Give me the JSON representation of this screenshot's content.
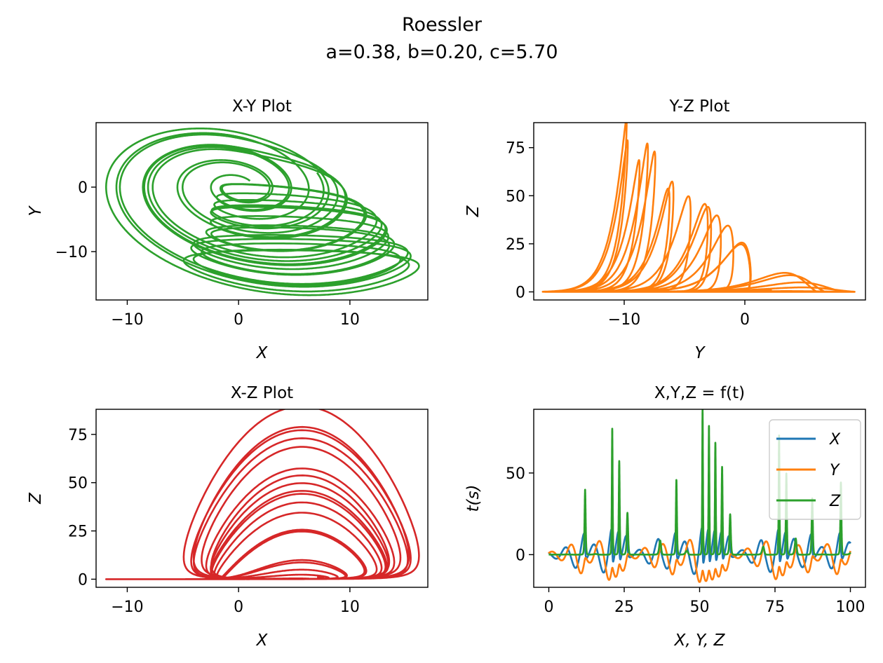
{
  "figure": {
    "title": "Roessler",
    "subtitle": "a=0.38, b=0.20, c=5.70"
  },
  "chart_data": [
    {
      "type": "line",
      "title": "X-Y Plot",
      "xlabel": "X",
      "ylabel": "Y",
      "xlim": [
        -12.8,
        17.0
      ],
      "ylim": [
        -17.5,
        10.0
      ],
      "xticks": [
        -10,
        0,
        10
      ],
      "yticks": [
        0,
        -10
      ],
      "xtick_labels": [
        "−10",
        "0",
        "10"
      ],
      "ytick_labels": [
        "0",
        "−10"
      ],
      "grid": false,
      "color": "#2ca02c",
      "series": [
        {
          "x": "X(t)",
          "y": "Y(t)"
        }
      ]
    },
    {
      "type": "line",
      "title": "Y-Z Plot",
      "xlabel": "Y",
      "ylabel": "Z",
      "xlim": [
        -17.5,
        10.0
      ],
      "ylim": [
        -4.2,
        88.0
      ],
      "xticks": [
        -10,
        0
      ],
      "yticks": [
        0,
        25,
        50,
        75
      ],
      "xtick_labels": [
        "−10",
        "0"
      ],
      "ytick_labels": [
        "0",
        "25",
        "50",
        "75"
      ],
      "grid": false,
      "color": "#ff7f0e",
      "series": [
        {
          "x": "Y(t)",
          "y": "Z(t)"
        }
      ]
    },
    {
      "type": "line",
      "title": "X-Z Plot",
      "xlabel": "X",
      "ylabel": "Z",
      "xlim": [
        -12.8,
        17.0
      ],
      "ylim": [
        -4.2,
        88.0
      ],
      "xticks": [
        -10,
        0,
        10
      ],
      "yticks": [
        0,
        25,
        50,
        75
      ],
      "xtick_labels": [
        "−10",
        "0",
        "10"
      ],
      "ytick_labels": [
        "0",
        "25",
        "50",
        "75"
      ],
      "grid": false,
      "color": "#d62728",
      "series": [
        {
          "x": "X(t)",
          "y": "Z(t)"
        }
      ]
    },
    {
      "type": "line",
      "title": "X,Y,Z = f(t)",
      "xlabel": "X, Y, Z",
      "ylabel": "t(s)",
      "xlim": [
        -5,
        105
      ],
      "ylim": [
        -20,
        89
      ],
      "xticks": [
        0,
        25,
        50,
        75,
        100
      ],
      "yticks": [
        0,
        50
      ],
      "xtick_labels": [
        "0",
        "25",
        "50",
        "75",
        "100"
      ],
      "ytick_labels": [
        "0",
        "50"
      ],
      "grid": false,
      "legend": "top-right",
      "series": [
        {
          "name": "X",
          "color": "#1f77b4",
          "t": [
            0,
            100
          ],
          "values": "X(t)"
        },
        {
          "name": "Y",
          "color": "#ff7f0e",
          "t": [
            0,
            100
          ],
          "values": "Y(t)"
        },
        {
          "name": "Z",
          "color": "#2ca02c",
          "t": [
            0,
            100
          ],
          "values": "Z(t)"
        }
      ]
    }
  ]
}
